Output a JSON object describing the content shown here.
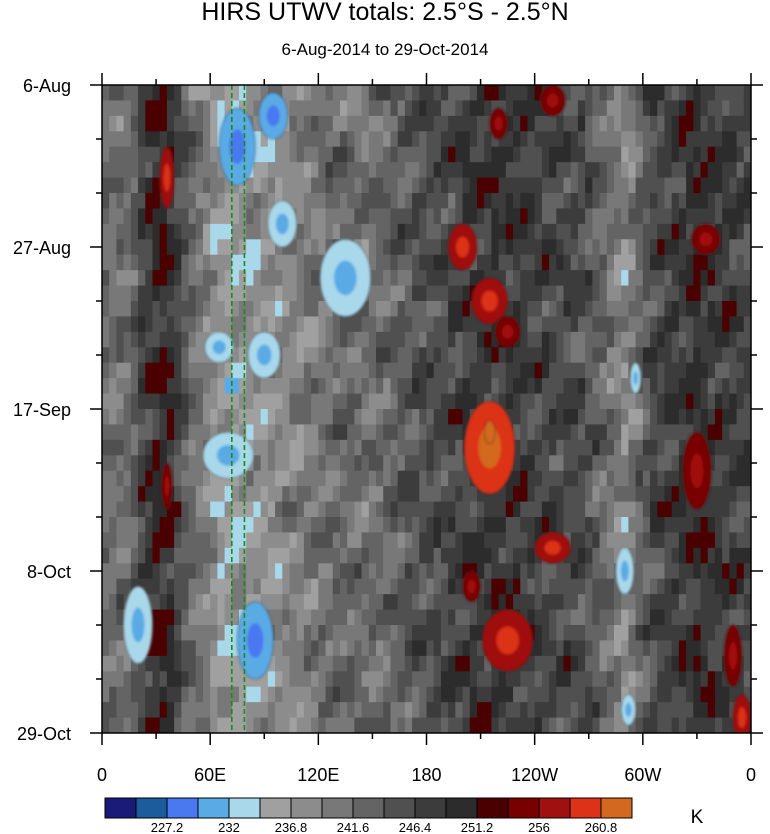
{
  "chart_data": {
    "type": "heatmap",
    "title": "HIRS UTWV totals: 2.5°S - 2.5°N",
    "subtitle": "6-Aug-2014 to 29-Oct-2014",
    "x_ticks": [
      "0",
      "60E",
      "120E",
      "180",
      "120W",
      "60W",
      "0"
    ],
    "x_tick_values": [
      0,
      60,
      120,
      180,
      240,
      300,
      360
    ],
    "y_ticks": [
      "6-Aug",
      "27-Aug",
      "17-Sep",
      "8-Oct",
      "29-Oct"
    ],
    "y_tick_values": [
      0,
      21,
      42,
      63,
      84
    ],
    "xlim": [
      0,
      360
    ],
    "ylim": [
      0,
      84
    ],
    "colorbar_unit": "K",
    "colorbar_labels": [
      "227.2",
      "232",
      "236.8",
      "241.6",
      "246.4",
      "251.2",
      "256",
      "260.8"
    ],
    "colorbar_colors": [
      "#1a1a78",
      "#1c5c9c",
      "#4a78f0",
      "#5aaae6",
      "#a8d8ea",
      "#a0a0a0",
      "#8c8c8c",
      "#787878",
      "#646464",
      "#505050",
      "#3c3c3c",
      "#2c2c2c",
      "#4a0000",
      "#780000",
      "#a01010",
      "#dc3218",
      "#d2691e"
    ],
    "reference_lines_x": [
      72,
      79
    ],
    "reference_line_color": "#1a8a1a",
    "blobs": [
      {
        "x": 36,
        "y": 12,
        "rx": 4,
        "ry": 4,
        "level": 14
      },
      {
        "x": 36,
        "y": 52,
        "rx": 3,
        "ry": 3,
        "level": 13
      },
      {
        "x": 75,
        "y": 8,
        "rx": 10,
        "ry": 5,
        "level": 3
      },
      {
        "x": 95,
        "y": 4,
        "rx": 8,
        "ry": 3,
        "level": 3
      },
      {
        "x": 100,
        "y": 18,
        "rx": 8,
        "ry": 3,
        "level": 4
      },
      {
        "x": 135,
        "y": 25,
        "rx": 14,
        "ry": 5,
        "level": 4
      },
      {
        "x": 90,
        "y": 35,
        "rx": 9,
        "ry": 3,
        "level": 4
      },
      {
        "x": 70,
        "y": 48,
        "rx": 14,
        "ry": 3,
        "level": 4
      },
      {
        "x": 85,
        "y": 72,
        "rx": 10,
        "ry": 5,
        "level": 3
      },
      {
        "x": 20,
        "y": 70,
        "rx": 8,
        "ry": 5,
        "level": 4
      },
      {
        "x": 65,
        "y": 34,
        "rx": 8,
        "ry": 2,
        "level": 4
      },
      {
        "x": 200,
        "y": 21,
        "rx": 8,
        "ry": 3,
        "level": 14
      },
      {
        "x": 215,
        "y": 28,
        "rx": 10,
        "ry": 3,
        "level": 14
      },
      {
        "x": 215,
        "y": 47,
        "rx": 14,
        "ry": 6,
        "level": 15
      },
      {
        "x": 215,
        "y": 45,
        "rx": 3,
        "ry": 1.5,
        "level": 16
      },
      {
        "x": 225,
        "y": 32,
        "rx": 7,
        "ry": 2,
        "level": 13
      },
      {
        "x": 250,
        "y": 60,
        "rx": 10,
        "ry": 2,
        "level": 14
      },
      {
        "x": 225,
        "y": 72,
        "rx": 14,
        "ry": 4,
        "level": 14
      },
      {
        "x": 250,
        "y": 2,
        "rx": 7,
        "ry": 2,
        "level": 13
      },
      {
        "x": 220,
        "y": 5,
        "rx": 5,
        "ry": 2,
        "level": 13
      },
      {
        "x": 205,
        "y": 65,
        "rx": 5,
        "ry": 2,
        "level": 13
      },
      {
        "x": 330,
        "y": 50,
        "rx": 8,
        "ry": 5,
        "level": 13
      },
      {
        "x": 335,
        "y": 20,
        "rx": 8,
        "ry": 2,
        "level": 13
      },
      {
        "x": 350,
        "y": 74,
        "rx": 5,
        "ry": 4,
        "level": 13
      },
      {
        "x": 355,
        "y": 82,
        "rx": 5,
        "ry": 3,
        "level": 14
      },
      {
        "x": 290,
        "y": 63,
        "rx": 5,
        "ry": 3,
        "level": 4
      },
      {
        "x": 296,
        "y": 38,
        "rx": 3,
        "ry": 2,
        "level": 4
      },
      {
        "x": 292,
        "y": 81,
        "rx": 4,
        "ry": 2,
        "level": 4
      }
    ]
  }
}
